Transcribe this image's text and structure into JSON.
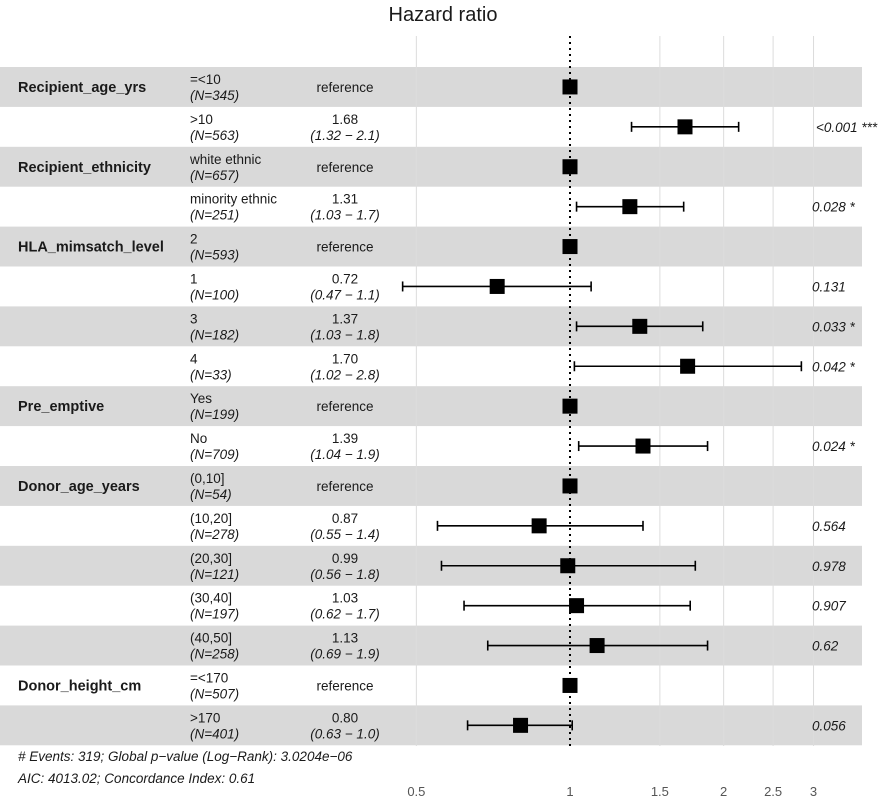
{
  "chart_data": {
    "type": "forest",
    "title": "Hazard ratio",
    "x_axis": {
      "scale": "log",
      "ticks": [
        0.5,
        1,
        1.5,
        2,
        2.5,
        3
      ],
      "tick_labels": [
        "0.5",
        "1",
        "1.5",
        "2",
        "2.5",
        "3"
      ],
      "reference_line": 1
    },
    "rows": [
      {
        "variable": "Recipient_age_yrs",
        "level": "=<10",
        "n": "(N=345)",
        "hr_label": "reference",
        "ci_label": "",
        "p_label": "",
        "hr": 1,
        "lo": null,
        "hi": null
      },
      {
        "variable": "",
        "level": ">10",
        "n": "(N=563)",
        "hr_label": "1.68",
        "ci_label": "(1.32 − 2.1)",
        "p_label": "<0.001 ***",
        "hr": 1.68,
        "lo": 1.32,
        "hi": 2.14
      },
      {
        "variable": "Recipient_ethnicity",
        "level": "white ethnic",
        "n": "(N=657)",
        "hr_label": "reference",
        "ci_label": "",
        "p_label": "",
        "hr": 1,
        "lo": null,
        "hi": null
      },
      {
        "variable": "",
        "level": "minority ethnic",
        "n": "(N=251)",
        "hr_label": "1.31",
        "ci_label": "(1.03 − 1.7)",
        "p_label": "0.028 *",
        "hr": 1.31,
        "lo": 1.03,
        "hi": 1.67
      },
      {
        "variable": "HLA_mimsatch_level",
        "level": "2",
        "n": "(N=593)",
        "hr_label": "reference",
        "ci_label": "",
        "p_label": "",
        "hr": 1,
        "lo": null,
        "hi": null
      },
      {
        "variable": "",
        "level": "1",
        "n": "(N=100)",
        "hr_label": "0.72",
        "ci_label": "(0.47 − 1.1)",
        "p_label": "0.131",
        "hr": 0.72,
        "lo": 0.47,
        "hi": 1.1
      },
      {
        "variable": "",
        "level": "3",
        "n": "(N=182)",
        "hr_label": "1.37",
        "ci_label": "(1.03 − 1.8)",
        "p_label": "0.033 *",
        "hr": 1.37,
        "lo": 1.03,
        "hi": 1.82
      },
      {
        "variable": "",
        "level": "4",
        "n": "(N=33)",
        "hr_label": "1.70",
        "ci_label": "(1.02 − 2.8)",
        "p_label": "0.042 *",
        "hr": 1.7,
        "lo": 1.02,
        "hi": 2.84
      },
      {
        "variable": "Pre_emptive",
        "level": "Yes",
        "n": "(N=199)",
        "hr_label": "reference",
        "ci_label": "",
        "p_label": "",
        "hr": 1,
        "lo": null,
        "hi": null
      },
      {
        "variable": "",
        "level": "No",
        "n": "(N=709)",
        "hr_label": "1.39",
        "ci_label": "(1.04 − 1.9)",
        "p_label": "0.024 *",
        "hr": 1.39,
        "lo": 1.04,
        "hi": 1.86
      },
      {
        "variable": "Donor_age_years",
        "level": "(0,10]",
        "n": "(N=54)",
        "hr_label": "reference",
        "ci_label": "",
        "p_label": "",
        "hr": 1,
        "lo": null,
        "hi": null
      },
      {
        "variable": "",
        "level": "(10,20]",
        "n": "(N=278)",
        "hr_label": "0.87",
        "ci_label": "(0.55 − 1.4)",
        "p_label": "0.564",
        "hr": 0.87,
        "lo": 0.55,
        "hi": 1.39
      },
      {
        "variable": "",
        "level": "(20,30]",
        "n": "(N=121)",
        "hr_label": "0.99",
        "ci_label": "(0.56 − 1.8)",
        "p_label": "0.978",
        "hr": 0.99,
        "lo": 0.56,
        "hi": 1.76
      },
      {
        "variable": "",
        "level": "(30,40]",
        "n": "(N=197)",
        "hr_label": "1.03",
        "ci_label": "(0.62 − 1.7)",
        "p_label": "0.907",
        "hr": 1.03,
        "lo": 0.62,
        "hi": 1.72
      },
      {
        "variable": "",
        "level": "(40,50]",
        "n": "(N=258)",
        "hr_label": "1.13",
        "ci_label": "(0.69 − 1.9)",
        "p_label": "0.62",
        "hr": 1.13,
        "lo": 0.69,
        "hi": 1.86
      },
      {
        "variable": "Donor_height_cm",
        "level": "=<170",
        "n": "(N=507)",
        "hr_label": "reference",
        "ci_label": "",
        "p_label": "",
        "hr": 1,
        "lo": null,
        "hi": null
      },
      {
        "variable": "",
        "level": ">170",
        "n": "(N=401)",
        "hr_label": "0.80",
        "ci_label": "(0.63 − 1.0)",
        "p_label": "0.056",
        "hr": 0.8,
        "lo": 0.63,
        "hi": 1.01
      }
    ],
    "footnotes": [
      "# Events: 319; Global p−value (Log−Rank): 3.0204e−06",
      "AIC: 4013.02; Concordance Index: 0.61"
    ],
    "colors": {
      "band": "#d9d9d9",
      "grid": "#dcdcdc",
      "marker": "#000000",
      "text": "#1a1a1a"
    }
  }
}
